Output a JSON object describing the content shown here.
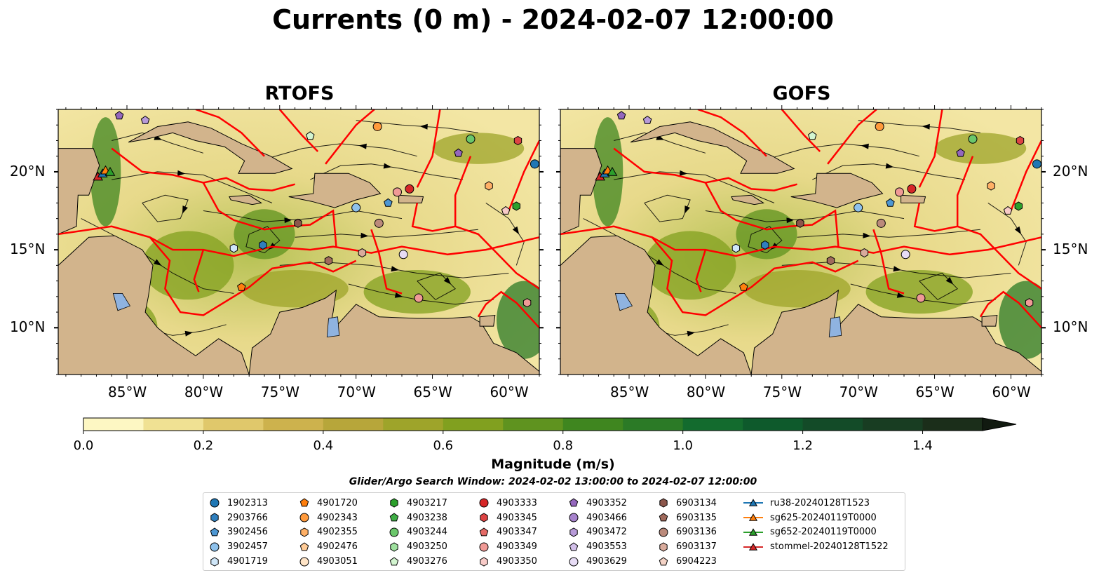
{
  "title": "Currents (0 m) - 2024-02-07 12:00:00",
  "panels": [
    {
      "title": "RTOFS",
      "lat_labels_side": "left"
    },
    {
      "title": "GOFS",
      "lat_labels_side": "right"
    }
  ],
  "map": {
    "lon_range": [
      -89.5,
      -58
    ],
    "lat_range": [
      7,
      24
    ],
    "lon_ticks": [
      "85°W",
      "80°W",
      "75°W",
      "70°W",
      "65°W",
      "60°W"
    ],
    "lat_ticks": [
      "20°N",
      "15°N",
      "10°N"
    ],
    "land_color": "#d2b48c",
    "eez_color": "#ff0000",
    "lake_color": "#8fb3e0"
  },
  "colorbar": {
    "label": "Magnitude (m/s)",
    "ticks": [
      "0.0",
      "0.2",
      "0.4",
      "0.6",
      "0.8",
      "1.0",
      "1.2",
      "1.4"
    ],
    "range": [
      0,
      1.5
    ],
    "extend": "max",
    "colors": [
      "#fdf7c3",
      "#f0e193",
      "#e0c86b",
      "#cdb24d",
      "#b7a63a",
      "#9ea42a",
      "#81a01f",
      "#5f931f",
      "#3f861f",
      "#2b7a26",
      "#136b2e",
      "#0e5a2c",
      "#134b28",
      "#183d22",
      "#1b2e1a"
    ]
  },
  "search_window": "Glider/Argo Search Window: 2024-02-02 13:00:00 to 2024-02-07 12:00:00",
  "legend": [
    [
      {
        "label": "1902313",
        "shape": "circle",
        "color": "#1f77b4"
      },
      {
        "label": "2903766",
        "shape": "hexagon",
        "color": "#2f7fbe"
      },
      {
        "label": "3902456",
        "shape": "pentagon",
        "color": "#4d97d3"
      },
      {
        "label": "3902457",
        "shape": "circle",
        "color": "#8ec1eb"
      },
      {
        "label": "4901719",
        "shape": "hexagon",
        "color": "#cfe6f8"
      }
    ],
    [
      {
        "label": "4901720",
        "shape": "pentagon",
        "color": "#ff7f0e"
      },
      {
        "label": "4902343",
        "shape": "circle",
        "color": "#ff9a3c"
      },
      {
        "label": "4902355",
        "shape": "hexagon",
        "color": "#ffb066"
      },
      {
        "label": "4902476",
        "shape": "pentagon",
        "color": "#ffcb96"
      },
      {
        "label": "4903051",
        "shape": "circle",
        "color": "#ffe4c6"
      }
    ],
    [
      {
        "label": "4903217",
        "shape": "hexagon",
        "color": "#2ca02c"
      },
      {
        "label": "4903238",
        "shape": "pentagon",
        "color": "#3fae45"
      },
      {
        "label": "4903244",
        "shape": "circle",
        "color": "#6bc76b"
      },
      {
        "label": "4903250",
        "shape": "hexagon",
        "color": "#9ee09e"
      },
      {
        "label": "4903276",
        "shape": "pentagon",
        "color": "#d3f5d0"
      }
    ],
    [
      {
        "label": "4903333",
        "shape": "circle",
        "color": "#d62728"
      },
      {
        "label": "4903345",
        "shape": "hexagon",
        "color": "#dd4444"
      },
      {
        "label": "4903347",
        "shape": "pentagon",
        "color": "#e56a66"
      },
      {
        "label": "4903349",
        "shape": "circle",
        "color": "#f09a96"
      },
      {
        "label": "4903350",
        "shape": "hexagon",
        "color": "#f8cbc8"
      }
    ],
    [
      {
        "label": "4903352",
        "shape": "pentagon",
        "color": "#9467bd"
      },
      {
        "label": "4903466",
        "shape": "circle",
        "color": "#a682cc"
      },
      {
        "label": "4903472",
        "shape": "hexagon",
        "color": "#b79ad8"
      },
      {
        "label": "4903553",
        "shape": "pentagon",
        "color": "#d2bfe9"
      },
      {
        "label": "4903629",
        "shape": "circle",
        "color": "#e7dcf5"
      }
    ],
    [
      {
        "label": "6903134",
        "shape": "hexagon",
        "color": "#8c564b"
      },
      {
        "label": "6903135",
        "shape": "pentagon",
        "color": "#a06a5c"
      },
      {
        "label": "6903136",
        "shape": "circle",
        "color": "#bb8a7b"
      },
      {
        "label": "6903137",
        "shape": "hexagon",
        "color": "#d9ab9c"
      },
      {
        "label": "6904223",
        "shape": "pentagon",
        "color": "#f3d2c5"
      }
    ],
    [
      {
        "label": "ru38-20240128T1523",
        "shape": "triangle",
        "color": "#1f77b4"
      },
      {
        "label": "sg625-20240119T0000",
        "shape": "triangle",
        "color": "#ff7f0e"
      },
      {
        "label": "sg652-20240119T0000",
        "shape": "triangle",
        "color": "#2ca02c"
      },
      {
        "label": "stommel-20240128T1522",
        "shape": "triangle",
        "color": "#d62728"
      }
    ]
  ]
}
